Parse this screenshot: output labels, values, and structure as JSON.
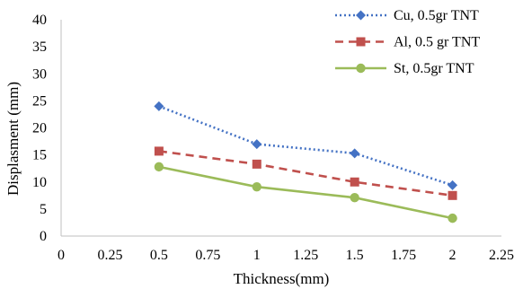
{
  "chart_data": {
    "type": "line",
    "title": "",
    "xlabel": "Thickness(mm)",
    "ylabel": "Displasment (mm)",
    "xlim": [
      0,
      2.25
    ],
    "ylim": [
      0,
      40
    ],
    "x_ticks": [
      "0",
      "0.25",
      "0.5",
      "0.75",
      "1",
      "1.25",
      "1.5",
      "1.75",
      "2",
      "2.25"
    ],
    "y_ticks": [
      "0",
      "5",
      "10",
      "15",
      "20",
      "25",
      "30",
      "35",
      "40"
    ],
    "grid": false,
    "legend_position": "top-right",
    "series": [
      {
        "name": "Cu, 0.5gr TNT",
        "color": "#4472C4",
        "line_style": "dotted",
        "marker": "diamond",
        "x": [
          0.5,
          1,
          1.5,
          2
        ],
        "y": [
          24,
          17,
          15.3,
          9.4
        ]
      },
      {
        "name": "Al, 0.5 gr TNT",
        "color": "#C0504D",
        "line_style": "dashed",
        "marker": "square",
        "x": [
          0.5,
          1,
          1.5,
          2
        ],
        "y": [
          15.7,
          13.3,
          10,
          7.5
        ]
      },
      {
        "name": "St, 0.5gr TNT",
        "color": "#9BBB59",
        "line_style": "solid",
        "marker": "circle",
        "x": [
          0.5,
          1,
          1.5,
          2
        ],
        "y": [
          12.8,
          9.1,
          7.1,
          3.3
        ]
      }
    ]
  }
}
